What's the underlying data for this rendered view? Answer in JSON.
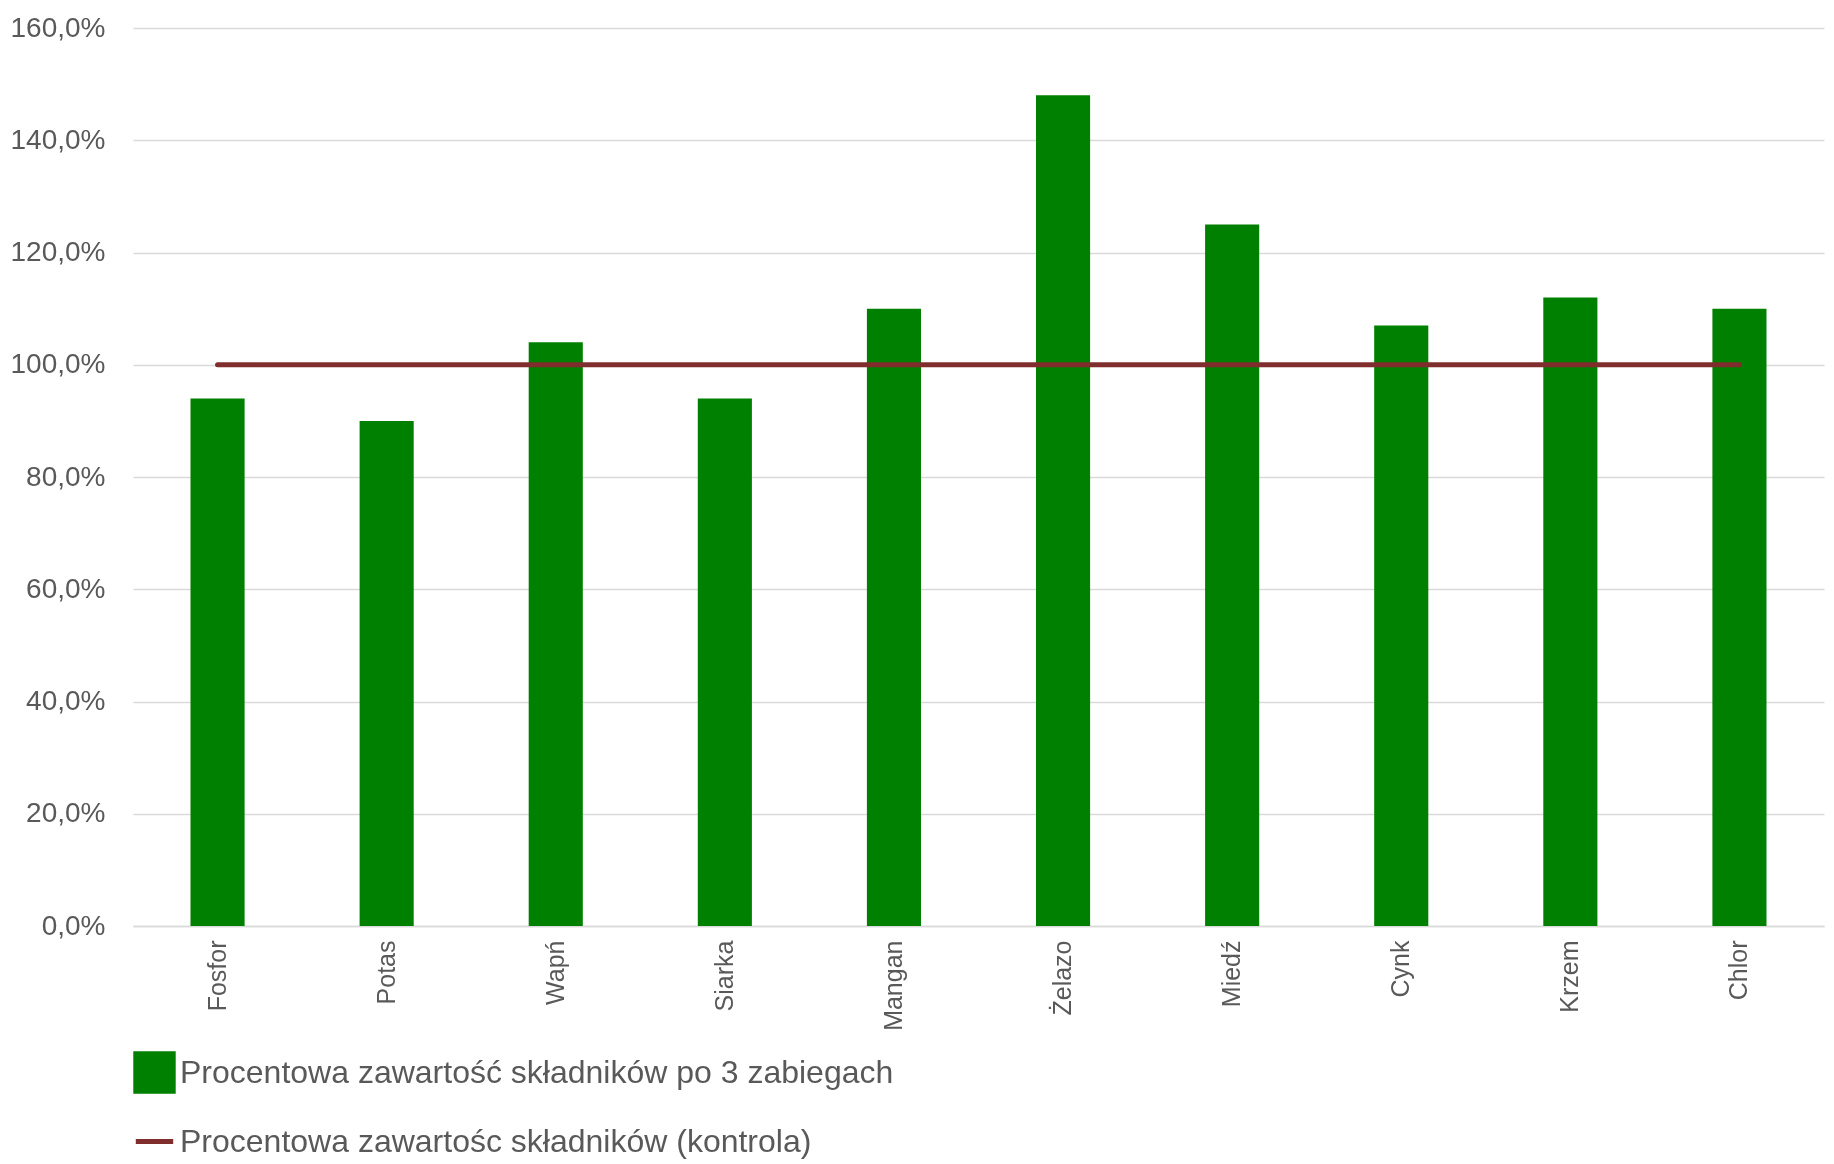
{
  "chart_data": {
    "type": "bar",
    "categories": [
      "Fosfor",
      "Potas",
      "Wapń",
      "Siarka",
      "Mangan",
      "Żelazo",
      "Miedź",
      "Cynk",
      "Krzem",
      "Chlor"
    ],
    "series": [
      {
        "name": "Procentowa zawartość składników po 3 zabiegach",
        "color": "#008000",
        "values": [
          94,
          90,
          104,
          94,
          110,
          148,
          125,
          107,
          112,
          110
        ]
      },
      {
        "name": "Procentowa zawartośc składników (kontrola)",
        "type": "line",
        "color": "#7f2d2d",
        "values": [
          100,
          100,
          100,
          100,
          100,
          100,
          100,
          100,
          100,
          100
        ]
      }
    ],
    "ylim": [
      0,
      160
    ],
    "yticks": [
      {
        "value": 0,
        "label": "0,0%"
      },
      {
        "value": 20,
        "label": "20,0%"
      },
      {
        "value": 40,
        "label": "40,0%"
      },
      {
        "value": 60,
        "label": "60,0%"
      },
      {
        "value": 80,
        "label": "80,0%"
      },
      {
        "value": 100,
        "label": "100,0%"
      },
      {
        "value": 120,
        "label": "120,0%"
      },
      {
        "value": 140,
        "label": "140,0%"
      },
      {
        "value": 160,
        "label": "160,0%"
      }
    ],
    "grid": "y",
    "legend": "bottom"
  }
}
